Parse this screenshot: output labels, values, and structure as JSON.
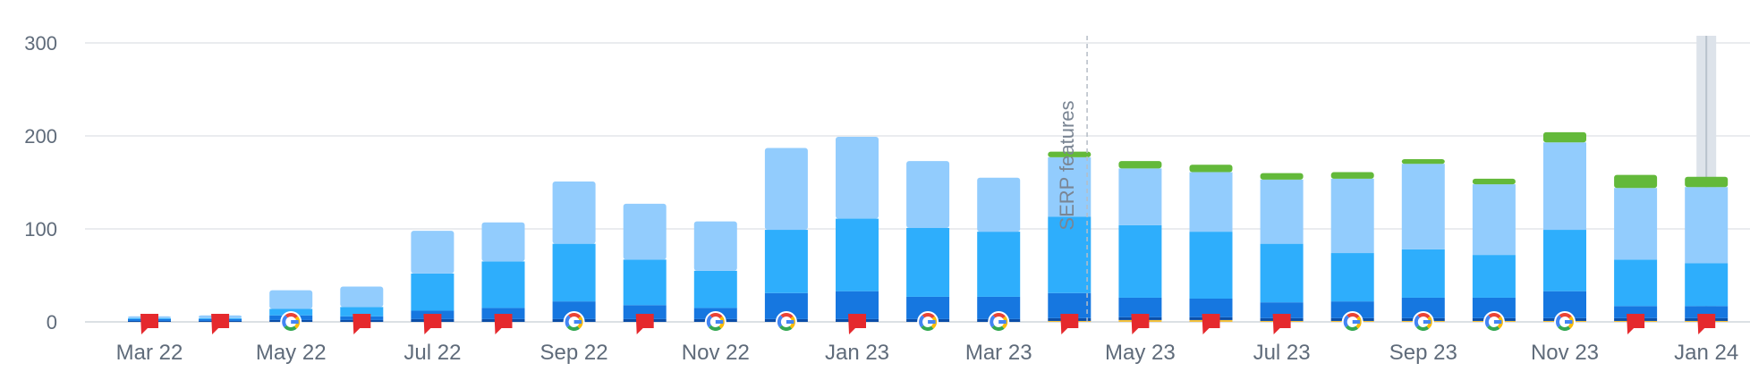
{
  "chart_data": {
    "type": "bar",
    "stacked": true,
    "title": "",
    "xlabel": "",
    "ylabel": "",
    "ylim": [
      0,
      300
    ],
    "yticks": [
      0,
      100,
      200,
      300
    ],
    "grid": true,
    "legend": "none",
    "categories": [
      "Mar 22",
      "Apr 22",
      "May 22",
      "Jun 22",
      "Jul 22",
      "Aug 22",
      "Sep 22",
      "Oct 22",
      "Nov 22",
      "Dec 22",
      "Jan 23",
      "Feb 23",
      "Mar 23",
      "Apr 23",
      "May 23",
      "Jun 23",
      "Jul 23",
      "Aug 23",
      "Sep 23",
      "Oct 23",
      "Nov 23",
      "Dec 23",
      "Jan 24"
    ],
    "xtick_labels": [
      "Mar 22",
      "May 22",
      "Jul 22",
      "Sep 22",
      "Nov 22",
      "Jan 23",
      "Mar 23",
      "May 23",
      "Jul 23",
      "Sep 23",
      "Nov 23",
      "Jan 24"
    ],
    "series": [
      {
        "color": "#f4c13c",
        "values": [
          0,
          0,
          0,
          0,
          0,
          0,
          0,
          0,
          0,
          0,
          0,
          0,
          0,
          1,
          2,
          2,
          1,
          1,
          1,
          1,
          1,
          1,
          1
        ]
      },
      {
        "color": "#0b4ea8",
        "values": [
          1,
          1,
          2,
          2,
          3,
          3,
          3,
          3,
          3,
          3,
          3,
          3,
          3,
          3,
          3,
          3,
          3,
          3,
          3,
          3,
          3,
          3,
          3
        ]
      },
      {
        "color": "#1677e0",
        "values": [
          2,
          2,
          5,
          4,
          9,
          12,
          19,
          15,
          12,
          28,
          30,
          24,
          24,
          27,
          21,
          20,
          17,
          18,
          22,
          22,
          29,
          13,
          13
        ]
      },
      {
        "color": "#2eaefc",
        "values": [
          1,
          1,
          7,
          10,
          40,
          50,
          62,
          49,
          40,
          68,
          78,
          74,
          70,
          82,
          78,
          72,
          63,
          52,
          52,
          46,
          66,
          50,
          46
        ]
      },
      {
        "color": "#92ccfd",
        "values": [
          2,
          3,
          20,
          22,
          46,
          42,
          67,
          60,
          53,
          88,
          88,
          72,
          58,
          64,
          61,
          64,
          69,
          80,
          92,
          76,
          94,
          77,
          82
        ]
      },
      {
        "color": "#63b93a",
        "values": [
          0,
          0,
          0,
          0,
          0,
          0,
          0,
          0,
          0,
          0,
          0,
          0,
          0,
          6,
          8,
          8,
          7,
          7,
          5,
          6,
          11,
          14,
          11
        ]
      }
    ],
    "markers": [
      "flag",
      "flag",
      "google",
      "flag",
      "flag",
      "flag",
      "google",
      "flag",
      "google",
      "google",
      "flag",
      "google",
      "google",
      "flag",
      "flag",
      "flag",
      "flag",
      "google",
      "google",
      "google",
      "google",
      "flag",
      "flag"
    ],
    "annotations": [
      {
        "text": "SERP features",
        "after_category": "Apr 23"
      }
    ],
    "highlight_category": "Jan 24",
    "colors": {
      "grid": "#e3e6ea",
      "axis": "#cfd5db",
      "tick_text": "#5f6b7a",
      "flag": "#e5292d",
      "annotation_line": "#b5bdc6",
      "highlight": "#dde3ea"
    }
  }
}
